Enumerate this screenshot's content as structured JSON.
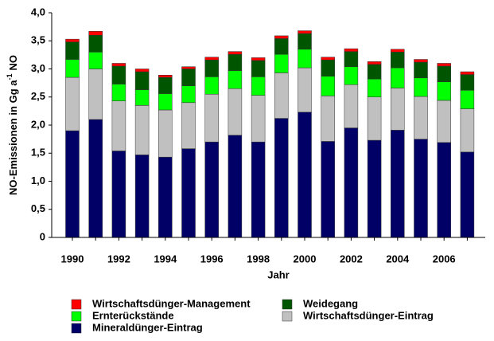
{
  "chart_data": {
    "type": "stacked_bar",
    "x_label": "Jahr",
    "y_label": {
      "text": "NO-Emissionen in Gg a",
      "sup": "-1",
      "after": "NO"
    },
    "categories": [
      "1990",
      null,
      "1992",
      null,
      "1994",
      null,
      "1996",
      null,
      "1998",
      null,
      "2000",
      null,
      "2002",
      null,
      "2004",
      null,
      "2006",
      null
    ],
    "ylim": [
      0,
      4.0
    ],
    "yticks": [
      0,
      {
        "value": 0.5,
        "label": "0,5"
      },
      {
        "value": 1.0,
        "label": "1,0"
      },
      {
        "value": 1.5,
        "label": "1,5"
      },
      {
        "value": 2.0,
        "label": "2,0"
      },
      {
        "value": 2.5,
        "label": "2,5"
      },
      {
        "value": 3.0,
        "label": "3,0"
      },
      {
        "value": 3.5,
        "label": "3,5"
      },
      {
        "value": 4.0,
        "label": "4,0"
      }
    ],
    "series": [
      {
        "name": "Mineraldünger-Eintrag",
        "color": "#000066",
        "values": [
          1.9,
          2.1,
          1.54,
          1.47,
          1.43,
          1.58,
          1.7,
          1.82,
          1.7,
          2.12,
          2.23,
          1.71,
          1.95,
          1.73,
          1.91,
          1.75,
          1.69,
          1.52
        ]
      },
      {
        "name": "Wirtschaftsdünger-Eintrag",
        "color": "#c0c0c0",
        "values": [
          0.95,
          0.9,
          0.89,
          0.88,
          0.84,
          0.82,
          0.85,
          0.83,
          0.83,
          0.81,
          0.79,
          0.81,
          0.77,
          0.77,
          0.75,
          0.76,
          0.75,
          0.77
        ]
      },
      {
        "name": "Ernterückstände",
        "color": "#00ff00",
        "values": [
          0.32,
          0.3,
          0.3,
          0.28,
          0.29,
          0.3,
          0.31,
          0.32,
          0.33,
          0.33,
          0.33,
          0.35,
          0.32,
          0.32,
          0.36,
          0.33,
          0.33,
          0.33
        ]
      },
      {
        "name": "Weidegang",
        "color": "#005500",
        "values": [
          0.31,
          0.3,
          0.32,
          0.32,
          0.29,
          0.3,
          0.3,
          0.29,
          0.29,
          0.28,
          0.28,
          0.29,
          0.27,
          0.26,
          0.28,
          0.28,
          0.28,
          0.28
        ]
      },
      {
        "name": "Wirtschaftsdünger-Management",
        "color": "#ff0000",
        "values": [
          0.05,
          0.07,
          0.05,
          0.05,
          0.04,
          0.04,
          0.05,
          0.05,
          0.05,
          0.05,
          0.05,
          0.05,
          0.05,
          0.05,
          0.05,
          0.05,
          0.05,
          0.05
        ]
      }
    ]
  }
}
